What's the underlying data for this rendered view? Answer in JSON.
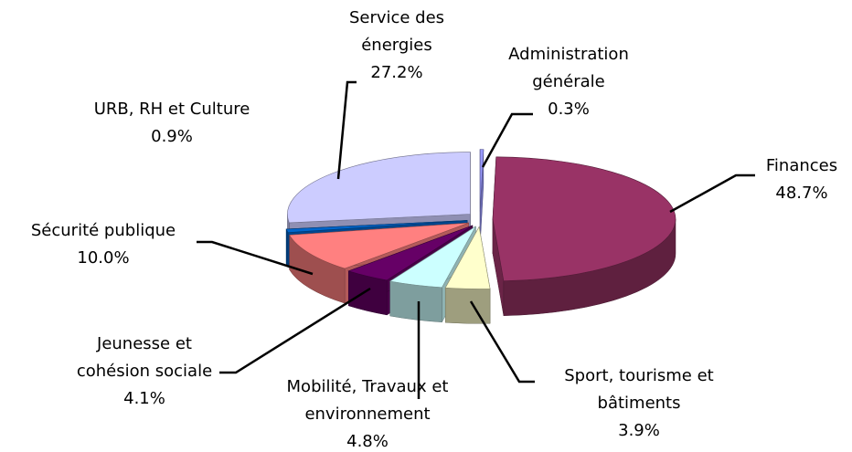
{
  "chart_data": {
    "type": "pie3d",
    "categories": [
      "Administration générale",
      "Finances",
      "Sport, tourisme et bâtiments",
      "Mobilité, Travaux et environnement",
      "Jeunesse et cohésion sociale",
      "Sécurité publique",
      "URB, RH et Culture",
      "Service des énergies"
    ],
    "values": [
      0.3,
      48.7,
      3.9,
      4.8,
      4.1,
      10.0,
      0.9,
      27.2
    ],
    "value_labels": [
      "0.3%",
      "48.7%",
      "3.9%",
      "4.8%",
      "4.1%",
      "10.0%",
      "0.9%",
      "27.2%"
    ],
    "colors": [
      "#9999ff",
      "#993366",
      "#ffffcc",
      "#ccffff",
      "#660066",
      "#ff8080",
      "#0066cc",
      "#ccccff"
    ]
  }
}
